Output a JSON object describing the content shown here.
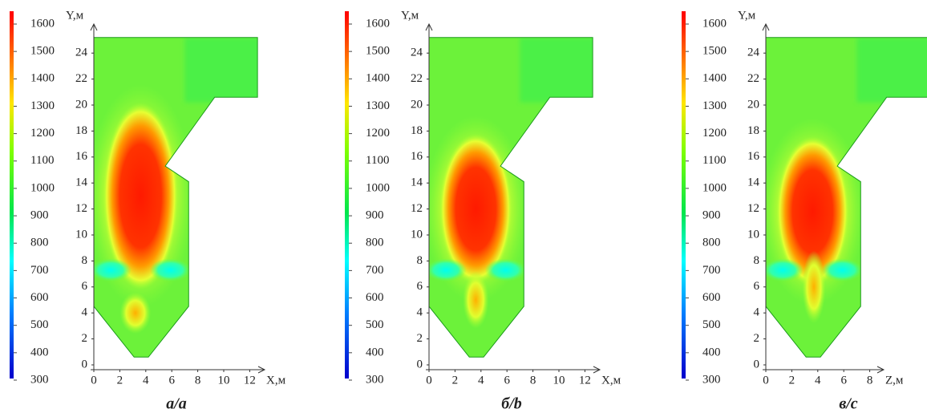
{
  "panels": [
    {
      "colorbar_ticks": [
        1600,
        1500,
        1400,
        1300,
        1200,
        1100,
        1000,
        900,
        800,
        700,
        600,
        500,
        400,
        300
      ],
      "y_label": "Y,м",
      "x_label": "X,м",
      "yticks": [
        0,
        2,
        4,
        6,
        8,
        10,
        12,
        14,
        16,
        18,
        20,
        22,
        24
      ],
      "xticks": [
        0,
        2,
        4,
        6,
        8,
        10,
        12
      ],
      "caption": "а/a"
    },
    {
      "colorbar_ticks": [
        1600,
        1500,
        1400,
        1300,
        1200,
        1100,
        1000,
        900,
        800,
        700,
        600,
        500,
        400,
        300
      ],
      "y_label": "Y,м",
      "x_label": "X,м",
      "yticks": [
        0,
        2,
        4,
        6,
        8,
        10,
        12,
        14,
        16,
        18,
        20,
        22,
        24
      ],
      "xticks": [
        0,
        2,
        4,
        6,
        8,
        10,
        12
      ],
      "caption": "б/b"
    },
    {
      "colorbar_ticks": [
        1600,
        1500,
        1400,
        1300,
        1200,
        1100,
        1000,
        900,
        800,
        700,
        600,
        500,
        400,
        300
      ],
      "y_label": "Y,м",
      "x_label": "Z,м",
      "yticks": [
        0,
        2,
        4,
        6,
        8,
        10,
        12,
        14,
        16,
        18,
        20,
        22,
        24
      ],
      "xticks": [
        0,
        2,
        4,
        6,
        8
      ],
      "caption": "в/c"
    }
  ]
}
